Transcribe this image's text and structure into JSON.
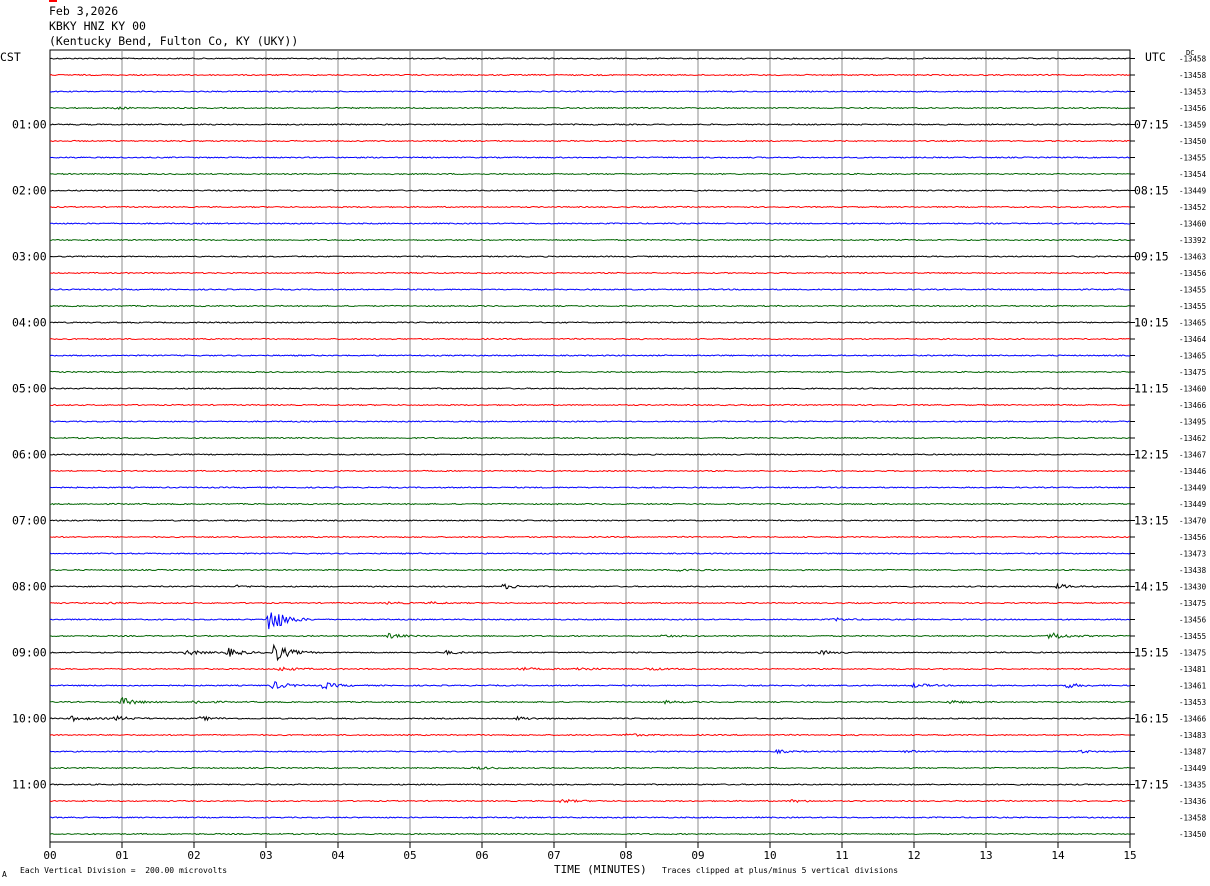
{
  "header": {
    "date": "Feb 3,2026",
    "station": "KBKY HNZ KY 00",
    "location": "(Kentucky Bend, Fulton Co, KY (UKY))"
  },
  "labels": {
    "left_tz": "CST",
    "right_tz": "UTC",
    "dc": "DC",
    "xlabel": "TIME (MINUTES)",
    "footer_left": "Each Vertical Division =  200.00 microvolts",
    "footer_right": "Traces clipped at plus/minus 5 vertical divisions",
    "footer_mark": "A"
  },
  "chart_data": {
    "type": "line",
    "title": "KBKY HNZ KY 00",
    "xlabel": "TIME (MINUTES)",
    "xlim": [
      0,
      15
    ],
    "x_ticks": [
      "00",
      "01",
      "02",
      "03",
      "04",
      "05",
      "06",
      "07",
      "08",
      "09",
      "10",
      "11",
      "12",
      "13",
      "14",
      "15"
    ],
    "left_time_labels": [
      "01:00",
      "02:00",
      "03:00",
      "04:00",
      "05:00",
      "06:00",
      "07:00",
      "08:00",
      "09:00",
      "10:00",
      "11:00"
    ],
    "right_time_labels": [
      "07:15",
      "08:15",
      "09:15",
      "10:15",
      "11:15",
      "12:15",
      "13:15",
      "14:15",
      "15:15",
      "16:15",
      "17:15"
    ],
    "trace_colors": [
      "#000000",
      "#ff0000",
      "#0000ff",
      "#006400"
    ],
    "dc_offsets": [
      "-13458",
      "-13458",
      "-13453",
      "-13456",
      "-13459",
      "-13450",
      "-13455",
      "-13454",
      "-13449",
      "-13452",
      "-13460",
      "-13392",
      "-13463",
      "-13456",
      "-13455",
      "-13455",
      "-13465",
      "-13464",
      "-13465",
      "-13475",
      "-13460",
      "-13466",
      "-13495",
      "-13462",
      "-13467",
      "-13446",
      "-13449",
      "-13449",
      "-13470",
      "-13456",
      "-13473",
      "-13438",
      "-13430",
      "-13475",
      "-13456",
      "-13455",
      "-13475",
      "-13481",
      "-13461",
      "-13453",
      "-13466",
      "-13483",
      "-13487",
      "-13449",
      "-13435",
      "-13436",
      "-13458",
      "-13450"
    ],
    "events": [
      {
        "trace": 3,
        "x": 0.9,
        "amp": 0.35
      },
      {
        "trace": 31,
        "x": 8.75,
        "amp": 0.8
      },
      {
        "trace": 32,
        "x": 2.6,
        "amp": 0.35
      },
      {
        "trace": 32,
        "x": 6.3,
        "amp": 0.9
      },
      {
        "trace": 32,
        "x": 14.0,
        "amp": 0.8
      },
      {
        "trace": 33,
        "x": 0.8,
        "amp": 0.3
      },
      {
        "trace": 33,
        "x": 4.7,
        "amp": 0.35
      },
      {
        "trace": 33,
        "x": 5.3,
        "amp": 0.35
      },
      {
        "trace": 34,
        "x": 3.05,
        "amp": 6.0
      },
      {
        "trace": 34,
        "x": 10.9,
        "amp": 0.5
      },
      {
        "trace": 35,
        "x": 4.7,
        "amp": 0.9
      },
      {
        "trace": 35,
        "x": 8.5,
        "amp": 0.4
      },
      {
        "trace": 35,
        "x": 13.9,
        "amp": 1.6
      },
      {
        "trace": 36,
        "x": 1.9,
        "amp": 1.0
      },
      {
        "trace": 36,
        "x": 2.45,
        "amp": 1.8
      },
      {
        "trace": 36,
        "x": 3.1,
        "amp": 4.0
      },
      {
        "trace": 36,
        "x": 5.5,
        "amp": 0.6
      },
      {
        "trace": 36,
        "x": 10.7,
        "amp": 0.7
      },
      {
        "trace": 37,
        "x": 3.2,
        "amp": 0.8
      },
      {
        "trace": 37,
        "x": 6.5,
        "amp": 0.7
      },
      {
        "trace": 37,
        "x": 7.3,
        "amp": 0.8
      },
      {
        "trace": 37,
        "x": 8.3,
        "amp": 0.5
      },
      {
        "trace": 38,
        "x": 3.1,
        "amp": 1.5
      },
      {
        "trace": 38,
        "x": 3.8,
        "amp": 1.2
      },
      {
        "trace": 38,
        "x": 12.0,
        "amp": 0.8
      },
      {
        "trace": 38,
        "x": 14.1,
        "amp": 1.0
      },
      {
        "trace": 39,
        "x": 1.0,
        "amp": 1.6
      },
      {
        "trace": 39,
        "x": 2.0,
        "amp": 0.7
      },
      {
        "trace": 39,
        "x": 8.5,
        "amp": 0.6
      },
      {
        "trace": 39,
        "x": 12.5,
        "amp": 0.6
      },
      {
        "trace": 40,
        "x": 0.3,
        "amp": 0.9
      },
      {
        "trace": 40,
        "x": 0.9,
        "amp": 0.9
      },
      {
        "trace": 40,
        "x": 2.1,
        "amp": 0.7
      },
      {
        "trace": 40,
        "x": 6.5,
        "amp": 0.6
      },
      {
        "trace": 41,
        "x": 8.0,
        "amp": 0.6
      },
      {
        "trace": 42,
        "x": 10.1,
        "amp": 0.5
      },
      {
        "trace": 42,
        "x": 11.9,
        "amp": 0.4
      },
      {
        "trace": 42,
        "x": 14.3,
        "amp": 0.5
      },
      {
        "trace": 43,
        "x": 5.9,
        "amp": 0.5
      },
      {
        "trace": 45,
        "x": 7.1,
        "amp": 0.7
      },
      {
        "trace": 45,
        "x": 10.3,
        "amp": 0.5
      }
    ]
  }
}
